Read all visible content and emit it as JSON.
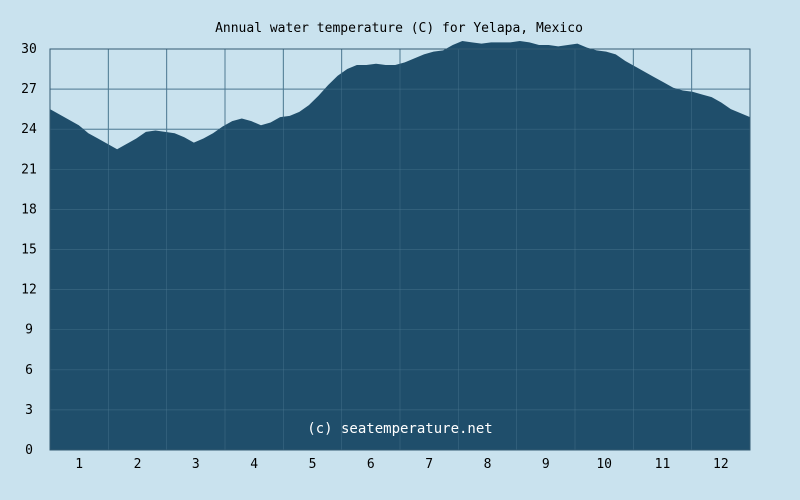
{
  "chart_data": {
    "type": "area",
    "title": "Annual water temperature (C) for Yelapa, Mexico",
    "watermark": "(c) seatemperature.net",
    "xlabel": "",
    "ylabel": "",
    "x_ticks": [
      "1",
      "2",
      "3",
      "4",
      "5",
      "6",
      "7",
      "8",
      "9",
      "10",
      "11",
      "12"
    ],
    "y_ticks": [
      "0",
      "3",
      "6",
      "9",
      "12",
      "15",
      "18",
      "21",
      "24",
      "27",
      "30"
    ],
    "ylim": [
      0,
      30
    ],
    "xlim": [
      1,
      366
    ],
    "grid": true,
    "colors": {
      "background": "#c9e2ee",
      "plot_background": "#c9e2ee",
      "area_fill": "#1f4e6b",
      "grid": "#4f7a93",
      "axis": "#335a72"
    },
    "series": [
      {
        "x": [
          1,
          6,
          11,
          16,
          21,
          26,
          31,
          36,
          41,
          46,
          51,
          56,
          61,
          66,
          71,
          76,
          81,
          86,
          91,
          96,
          101,
          106,
          111,
          116,
          121,
          126,
          131,
          136,
          141,
          146,
          151,
          156,
          161,
          166,
          171,
          176,
          181,
          186,
          191,
          196,
          201,
          206,
          211,
          216,
          221,
          226,
          231,
          236,
          241,
          246,
          251,
          256,
          261,
          266,
          271,
          276,
          281,
          286,
          291,
          296,
          301,
          306,
          311,
          316,
          321,
          326,
          331,
          336,
          341,
          346,
          351,
          356,
          361,
          366
        ],
        "values": [
          25.5,
          25.1,
          24.7,
          24.3,
          23.7,
          23.3,
          22.9,
          22.5,
          22.9,
          23.3,
          23.8,
          23.9,
          23.8,
          23.7,
          23.4,
          23.0,
          23.3,
          23.7,
          24.2,
          24.6,
          24.8,
          24.6,
          24.3,
          24.5,
          24.9,
          25.0,
          25.3,
          25.8,
          26.5,
          27.3,
          28.0,
          28.5,
          28.8,
          28.8,
          28.9,
          28.8,
          28.8,
          29.0,
          29.3,
          29.6,
          29.8,
          29.9,
          30.3,
          30.6,
          30.5,
          30.4,
          30.5,
          30.5,
          30.5,
          30.6,
          30.5,
          30.3,
          30.3,
          30.2,
          30.3,
          30.4,
          30.1,
          29.9,
          29.8,
          29.6,
          29.1,
          28.7,
          28.3,
          27.9,
          27.5,
          27.1,
          26.9,
          26.8,
          26.6,
          26.4,
          26.0,
          25.5,
          25.2,
          24.9
        ]
      }
    ]
  }
}
